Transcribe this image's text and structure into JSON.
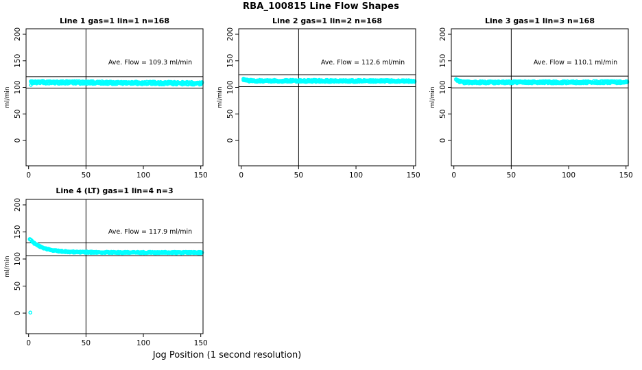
{
  "page": {
    "title": "RBA_100815  Line Flow Shapes",
    "xlabel": "Jog Position (1 second resolution)",
    "background": "#FFFFFF"
  },
  "colors": {
    "points": "#00FFFF",
    "axis": "#000000",
    "reference_lines": "#000000"
  },
  "chart_data": [
    {
      "type": "scatter",
      "title": "Line 1 gas=1 lin=1 n=168",
      "annotation": "Ave. Flow =  109.3  ml/min",
      "ave_flow": 109.3,
      "units": "ml/min",
      "n": 168,
      "ylabel": "ml/min",
      "xticks": [
        0,
        50,
        100,
        150
      ],
      "yticks": [
        0,
        50,
        100,
        150,
        200
      ],
      "xlim": [
        -2,
        152
      ],
      "ylim": [
        -48,
        210
      ],
      "vline_x": 50,
      "hlines": [
        120.2,
        98.4
      ],
      "marker": "open-circle",
      "band": {
        "x_start": 2,
        "x_end": 151,
        "base": 109.8,
        "trend": -0.015,
        "bump": 0,
        "tau": 2,
        "noise": 2.6,
        "points_per_x": 3,
        "outliers": [
          [
            2,
            104.5
          ]
        ]
      }
    },
    {
      "type": "scatter",
      "title": "Line 2 gas=1 lin=2 n=168",
      "annotation": "Ave. Flow =  112.6  ml/min",
      "ave_flow": 112.6,
      "units": "ml/min",
      "n": 168,
      "ylabel": "ml/min",
      "xticks": [
        0,
        50,
        100,
        150
      ],
      "yticks": [
        0,
        50,
        100,
        150,
        200
      ],
      "xlim": [
        -2,
        152
      ],
      "ylim": [
        -48,
        210
      ],
      "vline_x": 50,
      "hlines": [
        123.9,
        101.3
      ],
      "marker": "open-circle",
      "band": {
        "x_start": 2,
        "x_end": 151,
        "base": 112.4,
        "trend": -0.004,
        "bump": 2.5,
        "tau": 2,
        "noise": 1.9,
        "points_per_x": 3,
        "outliers": [
          [
            2,
            115.5
          ]
        ]
      }
    },
    {
      "type": "scatter",
      "title": "Line 3 gas=1 lin=3 n=168",
      "annotation": "Ave. Flow =  110.1  ml/min",
      "ave_flow": 110.1,
      "units": "ml/min",
      "n": 168,
      "ylabel": "ml/min",
      "xticks": [
        0,
        50,
        100,
        150
      ],
      "yticks": [
        0,
        50,
        100,
        150,
        200
      ],
      "xlim": [
        -2,
        152
      ],
      "ylim": [
        -48,
        210
      ],
      "vline_x": 50,
      "hlines": [
        121.1,
        99.1
      ],
      "marker": "open-circle",
      "band": {
        "x_start": 2,
        "x_end": 151,
        "base": 109.3,
        "trend": 0.004,
        "bump": 5.5,
        "tau": 2.5,
        "noise": 2.1,
        "points_per_x": 3,
        "outliers": [
          [
            2,
            115.5
          ]
        ]
      }
    },
    {
      "type": "scatter",
      "title": "Line 4 (LT) gas=1 lin=4 n=3",
      "annotation": "Ave. Flow =  117.9  ml/min",
      "ave_flow": 117.9,
      "units": "ml/min",
      "n": 3,
      "ylabel": "ml/min",
      "xticks": [
        0,
        50,
        100,
        150
      ],
      "yticks": [
        0,
        50,
        100,
        150,
        200
      ],
      "xlim": [
        -2,
        152
      ],
      "ylim": [
        -48,
        210
      ],
      "vline_x": 50,
      "hlines": [
        129.7,
        106.1
      ],
      "marker": "open-circle",
      "band": {
        "x_start": 1,
        "x_end": 151,
        "base": 112.4,
        "trend": -0.004,
        "bump": 24,
        "tau": 11,
        "noise": 1.3,
        "points_per_x": 3,
        "outliers": [
          [
            1.5,
            1
          ]
        ]
      }
    }
  ]
}
